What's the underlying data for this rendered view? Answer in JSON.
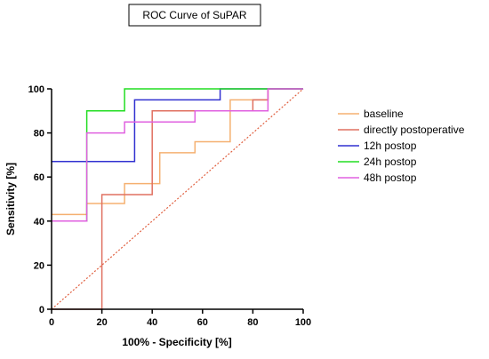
{
  "chart_data": {
    "type": "line",
    "title": "ROC Curve of SuPAR",
    "xlabel": "100% - Specificity [%]",
    "ylabel": "Sensitivity [%]",
    "xlim": [
      0,
      100
    ],
    "ylim": [
      0,
      100
    ],
    "xticks": [
      "0",
      "20",
      "40",
      "60",
      "80",
      "100"
    ],
    "yticks": [
      "0",
      "20",
      "40",
      "60",
      "80",
      "100"
    ],
    "grid": false,
    "legend_position": "right",
    "reference_line": {
      "x": [
        0,
        100
      ],
      "y": [
        0,
        100
      ],
      "color": "#e06040",
      "style": "dotted"
    },
    "series": [
      {
        "name": "baseline",
        "color": "#f5b070",
        "x": [
          0,
          14,
          14,
          29,
          29,
          43,
          43,
          57,
          57,
          71,
          71,
          86,
          86,
          100
        ],
        "y": [
          43,
          43,
          48,
          48,
          57,
          57,
          71,
          71,
          76,
          76,
          95,
          95,
          100,
          100
        ]
      },
      {
        "name": "directly postoperative",
        "color": "#e07060",
        "x": [
          0,
          20,
          20,
          40,
          40,
          80,
          80,
          86,
          86,
          100
        ],
        "y": [
          0,
          0,
          52,
          52,
          90,
          90,
          95,
          95,
          100,
          100
        ]
      },
      {
        "name": "12h postop",
        "color": "#3030d0",
        "x": [
          0,
          33,
          33,
          67,
          67,
          100
        ],
        "y": [
          67,
          67,
          95,
          95,
          100,
          100
        ]
      },
      {
        "name": "24h postop",
        "color": "#22dd22",
        "x": [
          0,
          14,
          14,
          29,
          29,
          100
        ],
        "y": [
          40,
          40,
          90,
          90,
          100,
          100
        ]
      },
      {
        "name": "48h postop",
        "color": "#e060e0",
        "x": [
          0,
          14,
          14,
          29,
          29,
          57,
          57,
          86,
          86,
          100
        ],
        "y": [
          40,
          40,
          80,
          80,
          85,
          85,
          90,
          90,
          100,
          100
        ]
      }
    ]
  }
}
